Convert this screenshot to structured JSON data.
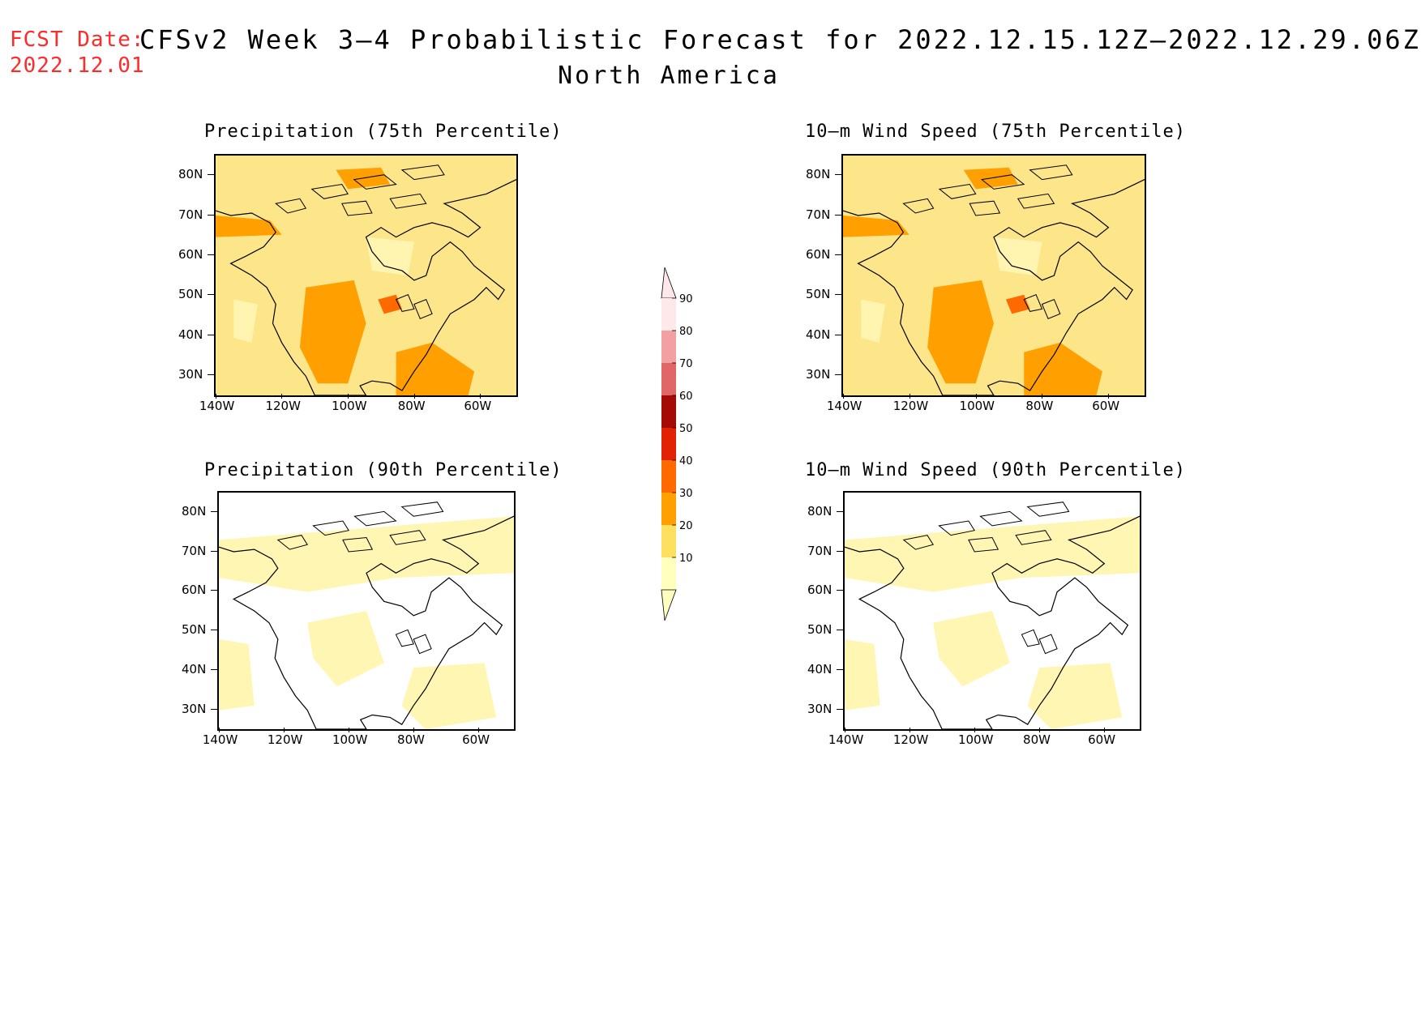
{
  "header": {
    "fcst_label": "FCST Date:",
    "fcst_date": "2022.12.01",
    "title": "CFSv2 Week 3–4 Probabilistic Forecast for 2022.12.15.12Z–2022.12.29.06Z",
    "subtitle": "North America"
  },
  "axes": {
    "lat_labels": [
      "80N",
      "70N",
      "60N",
      "50N",
      "40N",
      "30N"
    ],
    "lon_labels": [
      "140W",
      "120W",
      "100W",
      "80W",
      "60W"
    ]
  },
  "panels": [
    {
      "id": "precip-75",
      "title": "Precipitation (75th Percentile)",
      "fill_level": "high",
      "base_color": "#fde58a"
    },
    {
      "id": "wind-75",
      "title": "10–m Wind Speed (75th Percentile)",
      "fill_level": "high",
      "base_color": "#fde58a"
    },
    {
      "id": "precip-90",
      "title": "Precipitation (90th Percentile)",
      "fill_level": "low",
      "base_color": "#ffffff"
    },
    {
      "id": "wind-90",
      "title": "10–m Wind Speed (90th Percentile)",
      "fill_level": "low",
      "base_color": "#ffffff"
    }
  ],
  "colorbar": {
    "labels": [
      "90",
      "80",
      "70",
      "60",
      "50",
      "40",
      "30",
      "20",
      "10"
    ],
    "colors": [
      "#ffe8ea",
      "#f3a0a2",
      "#e06668",
      "#a50a05",
      "#e22204",
      "#ff6a00",
      "#ffa000",
      "#fde05f",
      "#ffffbe"
    ]
  }
}
